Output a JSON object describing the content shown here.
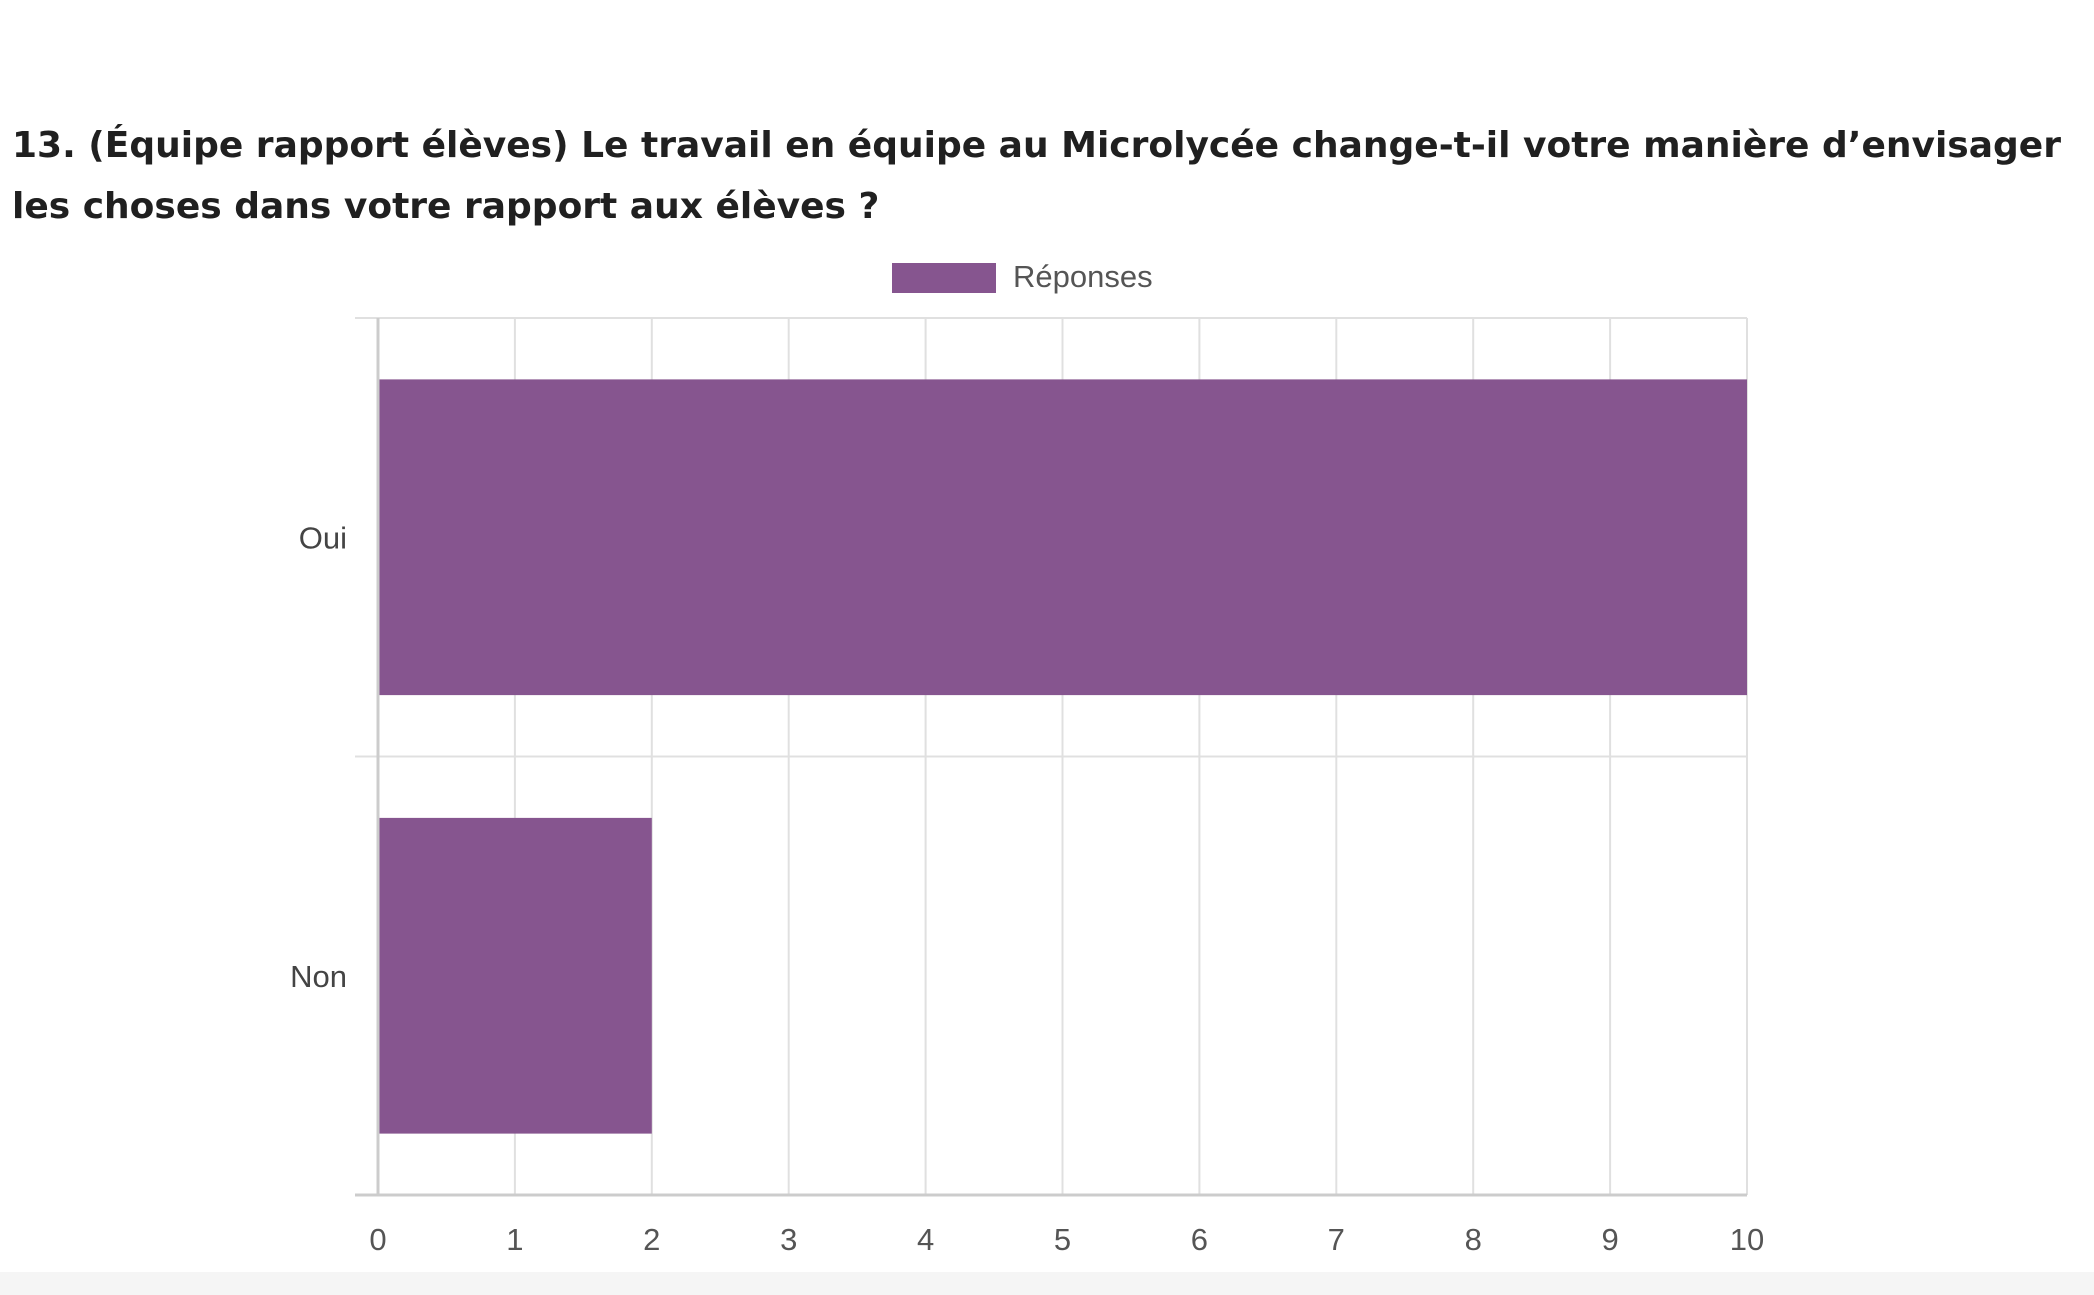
{
  "question": {
    "title": "13. (Équipe rapport élèves) Le travail en équipe au Microlycée change-t-il votre manière d’envisager les choses dans votre rapport aux élèves ?"
  },
  "chart_data": {
    "type": "bar",
    "orientation": "horizontal",
    "categories": [
      "Oui",
      "Non"
    ],
    "series": [
      {
        "name": "Réponses",
        "values": [
          10,
          2
        ]
      }
    ],
    "xlim": [
      0,
      10
    ],
    "x_ticks": [
      0,
      1,
      2,
      3,
      4,
      5,
      6,
      7,
      8,
      9,
      10
    ],
    "grid": true,
    "legend": "top",
    "colors": {
      "bar": "#86558F",
      "grid": "#e0e0e0",
      "axis": "#cccccc"
    }
  }
}
